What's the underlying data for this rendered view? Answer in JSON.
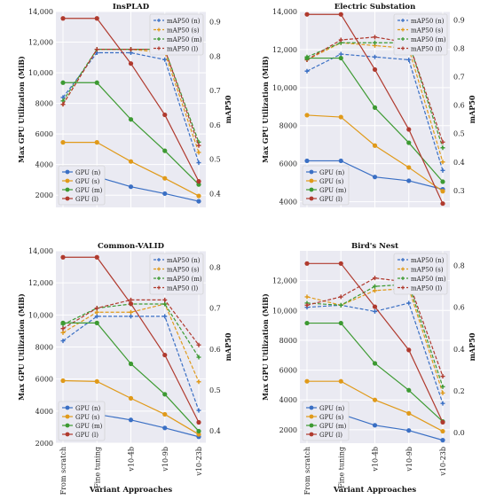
{
  "figure": {
    "xlabel": "Variant Approaches",
    "ylabel_left": "Max GPU Utilization (MiB)",
    "ylabel_right": "mAP50",
    "categories": [
      "From scratch",
      "Fine tuning",
      "v10-4b",
      "v10-9b",
      "v10-23b"
    ]
  },
  "legend_map": [
    "mAP50 (n)",
    "mAP50 (s)",
    "mAP50 (m)",
    "mAP50 (l)"
  ],
  "legend_gpu": [
    "GPU (n)",
    "GPU (s)",
    "GPU (m)",
    "GPU (l)"
  ],
  "colors": {
    "n": "#3a6fc4",
    "s": "#e09a1a",
    "m": "#3d9a32",
    "l": "#b03a2e",
    "background": "#eaeaf2",
    "grid": "#ffffff"
  },
  "chart_data": [
    {
      "type": "line",
      "title": "InsPLAD",
      "categories": [
        "From scratch",
        "Fine tuning",
        "v10-4b",
        "v10-9b",
        "v10-23b"
      ],
      "ylim_left": [
        1200,
        14000
      ],
      "yticks_left": [
        2000,
        4000,
        6000,
        8000,
        10000,
        12000,
        14000
      ],
      "ytick_labels_left": [
        "2000",
        "4000",
        "6000",
        "8000",
        "10,000",
        "12,000",
        "14,000"
      ],
      "ylim_right": [
        0.36,
        0.93
      ],
      "yticks_right": [
        0.4,
        0.5,
        0.6,
        0.7,
        0.8,
        0.9
      ],
      "ytick_labels_right": [
        "0.4",
        "0.5",
        "0.6",
        "0.7",
        "0.8",
        "0.9"
      ],
      "legend_map_position": "top-right",
      "legend_gpu_position": "bottom-left",
      "gpu": {
        "n": [
          3200,
          3200,
          2550,
          2100,
          1600
        ],
        "s": [
          5450,
          5450,
          4200,
          3100,
          1950
        ],
        "m": [
          9350,
          9350,
          6950,
          4900,
          2700
        ],
        "l": [
          13550,
          13550,
          10600,
          7250,
          2900
        ]
      },
      "map": {
        "n": [
          0.68,
          0.81,
          0.81,
          0.79,
          0.49
        ],
        "s": [
          0.66,
          0.82,
          0.82,
          0.81,
          0.52
        ],
        "m": [
          0.67,
          0.82,
          0.82,
          0.82,
          0.55
        ],
        "l": [
          0.66,
          0.82,
          0.82,
          0.82,
          0.54
        ]
      }
    },
    {
      "type": "line",
      "title": "Electric Substation",
      "categories": [
        "From scratch",
        "Fine tuning",
        "v10-4b",
        "v10-9b",
        "v10-23b"
      ],
      "ylim_left": [
        3700,
        14000
      ],
      "yticks_left": [
        4000,
        6000,
        8000,
        10000,
        12000,
        14000
      ],
      "ytick_labels_left": [
        "4000",
        "6000",
        "8000",
        "10,000",
        "12,000",
        "14,000"
      ],
      "ylim_right": [
        0.24,
        0.93
      ],
      "yticks_right": [
        0.3,
        0.4,
        0.5,
        0.6,
        0.7,
        0.8,
        0.9
      ],
      "ytick_labels_right": [
        "0.3",
        "0.4",
        "0.5",
        "0.6",
        "0.7",
        "0.8",
        "0.9"
      ],
      "legend_map_position": "top-right",
      "legend_gpu_position": "bottom-left",
      "gpu": {
        "n": [
          6150,
          6150,
          5300,
          5100,
          4650
        ],
        "s": [
          8550,
          8450,
          6950,
          5800,
          4550
        ],
        "m": [
          11550,
          11550,
          8950,
          7100,
          5050
        ],
        "l": [
          13850,
          13850,
          10950,
          7800,
          3900
        ]
      },
      "map": {
        "n": [
          0.72,
          0.78,
          0.77,
          0.76,
          0.37
        ],
        "s": [
          0.76,
          0.82,
          0.81,
          0.8,
          0.4
        ],
        "m": [
          0.77,
          0.82,
          0.82,
          0.82,
          0.45
        ],
        "l": [
          0.76,
          0.83,
          0.84,
          0.82,
          0.47
        ]
      }
    },
    {
      "type": "line",
      "title": "Common-VALID",
      "categories": [
        "From scratch",
        "Fine tuning",
        "v10-4b",
        "v10-9b",
        "v10-23b"
      ],
      "ylim_left": [
        2000,
        14000
      ],
      "yticks_left": [
        2000,
        4000,
        6000,
        8000,
        10000,
        12000,
        14000
      ],
      "ytick_labels_left": [
        "2000",
        "4000",
        "6000",
        "8000",
        "10,000",
        "12,000",
        "14,000"
      ],
      "ylim_right": [
        0.37,
        0.84
      ],
      "yticks_right": [
        0.4,
        0.5,
        0.6,
        0.7,
        0.8
      ],
      "ytick_labels_right": [
        "0.4",
        "0.5",
        "0.6",
        "0.7",
        "0.8"
      ],
      "legend_map_position": "top-right",
      "legend_gpu_position": "bottom-left",
      "gpu": {
        "n": [
          3800,
          3800,
          3450,
          2950,
          2400
        ],
        "s": [
          5900,
          5850,
          4800,
          3800,
          2550
        ],
        "m": [
          9500,
          9500,
          6950,
          5050,
          2750
        ],
        "l": [
          13600,
          13600,
          10700,
          7500,
          3300
        ]
      },
      "map": {
        "n": [
          0.62,
          0.68,
          0.68,
          0.68,
          0.45
        ],
        "s": [
          0.64,
          0.69,
          0.69,
          0.71,
          0.52
        ],
        "m": [
          0.66,
          0.7,
          0.71,
          0.71,
          0.58
        ],
        "l": [
          0.65,
          0.7,
          0.72,
          0.72,
          0.61
        ]
      }
    },
    {
      "type": "line",
      "title": "Bird's Nest",
      "categories": [
        "From scratch",
        "Fine tuning",
        "v10-4b",
        "v10-9b",
        "v10-23b"
      ],
      "ylim_left": [
        1100,
        14000
      ],
      "yticks_left": [
        2000,
        4000,
        6000,
        8000,
        10000,
        12000
      ],
      "ytick_labels_left": [
        "2000",
        "4000",
        "6000",
        "8000",
        "10,000",
        "12,000"
      ],
      "ylim_right": [
        -0.05,
        0.87
      ],
      "yticks_right": [
        0.0,
        0.2,
        0.4,
        0.6,
        0.8
      ],
      "ytick_labels_right": [
        "0.0",
        "0.2",
        "0.4",
        "0.6",
        "0.8"
      ],
      "legend_map_position": "top-right",
      "legend_gpu_position": "bottom-left",
      "gpu": {
        "n": [
          3100,
          3050,
          2300,
          1950,
          1300
        ],
        "s": [
          5250,
          5250,
          4000,
          3100,
          1900
        ],
        "m": [
          9150,
          9150,
          6450,
          4650,
          2550
        ],
        "l": [
          13150,
          13150,
          10250,
          7350,
          2500
        ]
      },
      "map": {
        "n": [
          0.6,
          0.61,
          0.58,
          0.62,
          0.14
        ],
        "s": [
          0.65,
          0.61,
          0.68,
          0.69,
          0.19
        ],
        "m": [
          0.62,
          0.61,
          0.7,
          0.71,
          0.22
        ],
        "l": [
          0.61,
          0.65,
          0.74,
          0.72,
          0.27
        ]
      }
    }
  ]
}
